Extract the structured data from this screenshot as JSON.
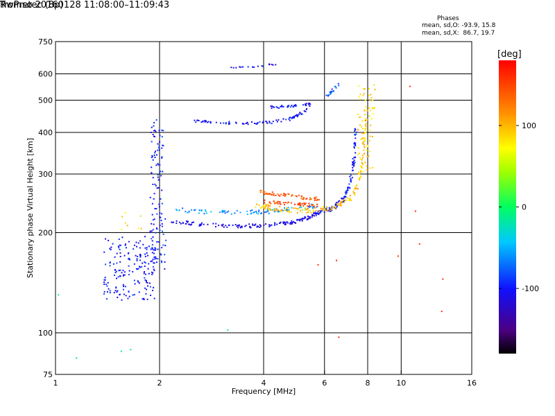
{
  "chart_data": {
    "type": "scatter",
    "title": "Tromsø 20160128 11:08:00–11:09:43",
    "subtitle": "RwPretec (8p)",
    "xlabel": "Frequency [MHz]",
    "ylabel": "Stationary phase Virtual Height [km]",
    "x_scale": "log",
    "y_scale": "log",
    "xlim": [
      1,
      16
    ],
    "ylim": [
      75,
      750
    ],
    "x_ticks": [
      1,
      2,
      4,
      6,
      8,
      10,
      16
    ],
    "x_tick_labels": [
      "1",
      "2",
      "4",
      "6",
      "8",
      "10",
      "16"
    ],
    "y_ticks": [
      75,
      100,
      200,
      300,
      400,
      500,
      600,
      750
    ],
    "y_tick_labels": [
      "75",
      "100",
      "200",
      "300",
      "400",
      "500",
      "600",
      "750"
    ],
    "grid": true,
    "legend": {
      "title": "Phases",
      "line_o": "mean, sd,O: -93.9, 15.8",
      "line_x": "mean, sd,X:  86.7, 19.7"
    },
    "colorbar": {
      "label": "[deg]",
      "range": [
        -180,
        180
      ],
      "ticks": [
        100,
        0,
        -100
      ],
      "tick_labels": [
        "100",
        "0",
        "-100"
      ],
      "colormap": "rainbow"
    },
    "series": [
      {
        "traces": [
          {
            "kind": "cluster",
            "x": [
              1.38,
              1.95
            ],
            "y": [
              125,
              195
            ],
            "c": -100,
            "n": 180
          },
          {
            "kind": "cluster",
            "x": [
              1.88,
              2.05
            ],
            "y": [
              200,
              440
            ],
            "c": -100,
            "n": 90
          },
          {
            "kind": "cluster",
            "x": [
              1.9,
              2.1
            ],
            "y": [
              155,
              200
            ],
            "c": -95,
            "n": 30
          },
          {
            "kind": "curve",
            "x": [
              2.05,
              2.6,
              3.2,
              4.0,
              4.8,
              5.4,
              5.9
            ],
            "y": [
              218,
              212,
              209,
              210,
              214,
              222,
              232
            ],
            "c": -110,
            "n": 160,
            "spread": 0.012
          },
          {
            "kind": "curve",
            "x": [
              2.2,
              2.8,
              3.5,
              4.2,
              5.0,
              5.8
            ],
            "y": [
              235,
              230,
              230,
              232,
              236,
              242
            ],
            "c": -60,
            "n": 90,
            "spread": 0.015
          },
          {
            "kind": "curve",
            "x": [
              5.9,
              6.4,
              6.8,
              7.1,
              7.3,
              7.4
            ],
            "y": [
              230,
              238,
              252,
              280,
              330,
              420
            ],
            "c": -100,
            "n": 110,
            "spread": 0.015
          },
          {
            "kind": "curve",
            "x": [
              2.5,
              3.0,
              3.6,
              4.2,
              4.8,
              5.4
            ],
            "y": [
              432,
              428,
              426,
              428,
              440,
              470
            ],
            "c": -105,
            "n": 90,
            "spread": 0.01
          },
          {
            "kind": "curve",
            "x": [
              4.2,
              4.6,
              5.0,
              5.5
            ],
            "y": [
              475,
              478,
              482,
              485
            ],
            "c": -100,
            "n": 40,
            "spread": 0.01
          },
          {
            "kind": "curve",
            "x": [
              3.2,
              3.6,
              4.0
            ],
            "y": [
              628,
              630,
              632
            ],
            "c": -105,
            "n": 12,
            "spread": 0.005
          },
          {
            "kind": "curve",
            "x": [
              4.1,
              4.4
            ],
            "y": [
              640,
              640
            ],
            "c": -105,
            "n": 8,
            "spread": 0.004
          },
          {
            "kind": "curve",
            "x": [
              6.0,
              6.3,
              6.6
            ],
            "y": [
              505,
              530,
              555
            ],
            "c": -80,
            "n": 20,
            "spread": 0.015
          },
          {
            "kind": "points",
            "x": [
              1.02,
              1.15,
              1.55,
              1.65,
              3.15
            ],
            "y": [
              130,
              84,
              88,
              89,
              102
            ],
            "c": -20
          }
        ]
      },
      {
        "traces": [
          {
            "kind": "curve",
            "x": [
              3.8,
              4.3,
              5.0,
              5.8,
              6.5,
              7.2,
              7.6,
              7.8,
              7.9
            ],
            "y": [
              242,
              236,
              233,
              234,
              240,
              255,
              290,
              360,
              460
            ],
            "c": 95,
            "n": 170,
            "spread": 0.018
          },
          {
            "kind": "curve",
            "x": [
              3.9,
              4.5,
              5.2,
              5.8
            ],
            "y": [
              265,
              260,
              255,
              252
            ],
            "c": 140,
            "n": 60,
            "spread": 0.012
          },
          {
            "kind": "curve",
            "x": [
              4.0,
              4.6,
              5.2,
              5.9
            ],
            "y": [
              248,
              245,
              243,
              242
            ],
            "c": 150,
            "n": 50,
            "spread": 0.01
          },
          {
            "kind": "cluster",
            "x": [
              7.5,
              8.4
            ],
            "y": [
              300,
              560
            ],
            "c": 90,
            "n": 70
          },
          {
            "kind": "cluster",
            "x": [
              1.55,
              1.8
            ],
            "y": [
              200,
              232
            ],
            "c": 85,
            "n": 8
          },
          {
            "kind": "points",
            "x": [
              5.75,
              6.5,
              6.6,
              11.3,
              11.0,
              13.2,
              13.1,
              9.8,
              10.6
            ],
            "y": [
              160,
              165,
              97,
              185,
              232,
              145,
              116,
              170,
              550
            ],
            "c": 160
          }
        ]
      }
    ]
  }
}
